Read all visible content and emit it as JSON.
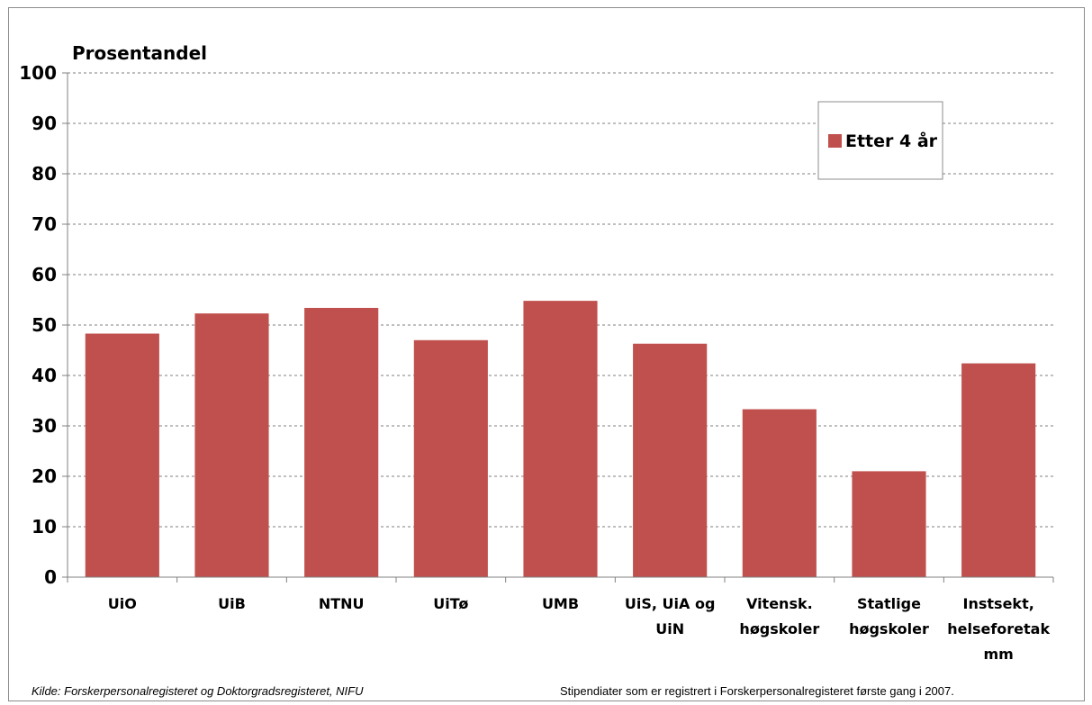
{
  "chart_data": {
    "type": "bar",
    "ylabel": "Prosentandel",
    "xlabel": "",
    "ylim": [
      0,
      100
    ],
    "yticks": [
      0,
      10,
      20,
      30,
      40,
      50,
      60,
      70,
      80,
      90,
      100
    ],
    "grid": true,
    "legend_position": "top-right",
    "categories": [
      [
        "UiO"
      ],
      [
        "UiB"
      ],
      [
        "NTNU"
      ],
      [
        "UiTø"
      ],
      [
        "UMB"
      ],
      [
        "UiS, UiA og",
        "UiN"
      ],
      [
        "Vitensk.",
        "høgskoler"
      ],
      [
        "Statlige",
        "høgskoler"
      ],
      [
        "Instsekt,",
        "helseforetak",
        "mm"
      ]
    ],
    "series": [
      {
        "name": "Etter 4 år",
        "color": "#c0504d",
        "values": [
          48.3,
          52.3,
          53.4,
          47.0,
          54.8,
          46.3,
          33.3,
          21.0,
          42.4
        ]
      }
    ]
  },
  "footer": {
    "source": "Kilde: Forskerpersonalregisteret  og Doktorgradsregisteret,  NIFU",
    "note": "Stipendiater som er registrert i Forskerpersonalregisteret første gang i 2007."
  }
}
